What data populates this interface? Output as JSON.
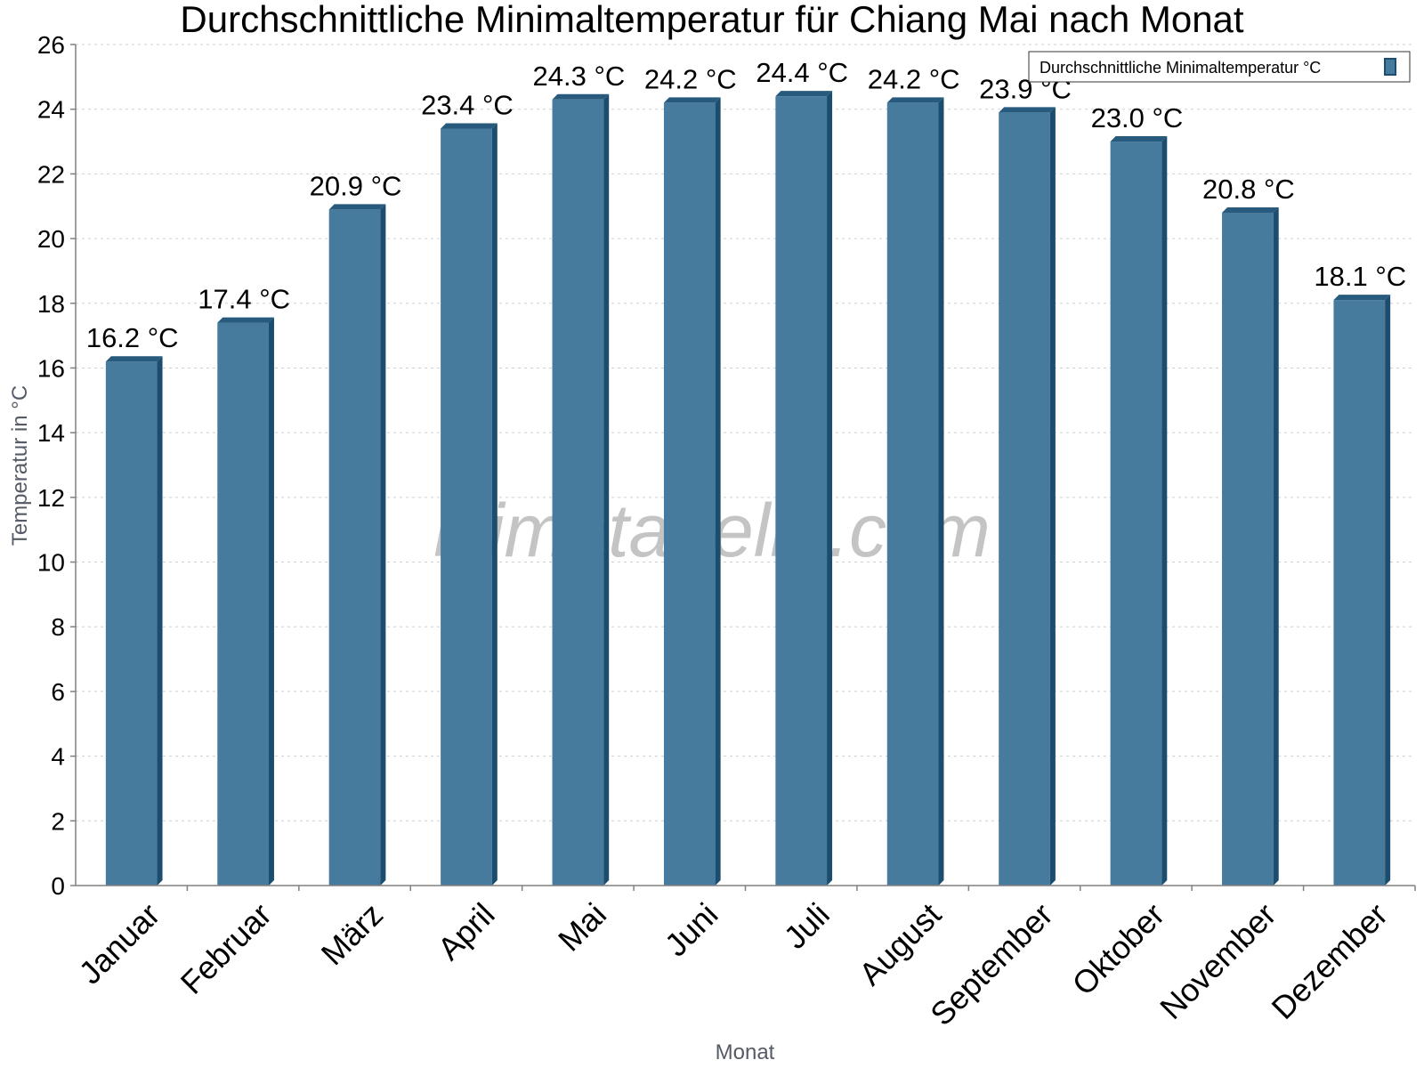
{
  "chart_data": {
    "type": "bar",
    "title": "Durchschnittliche Minimaltemperatur für Chiang Mai nach Monat",
    "xlabel": "Monat",
    "ylabel": "Temperatur in °C",
    "categories": [
      "Januar",
      "Februar",
      "März",
      "April",
      "Mai",
      "Juni",
      "Juli",
      "August",
      "September",
      "Oktober",
      "November",
      "Dezember"
    ],
    "series": [
      {
        "name": "Durchschnittliche Minimaltemperatur °C",
        "values": [
          16.2,
          17.4,
          20.9,
          23.4,
          24.3,
          24.2,
          24.4,
          24.2,
          23.9,
          23.0,
          20.8,
          18.1
        ],
        "labels": [
          "16.2 °C",
          "17.4 °C",
          "20.9 °C",
          "23.4 °C",
          "24.3 °C",
          "24.2 °C",
          "24.4 °C",
          "24.2 °C",
          "23.9 °C",
          "23.0 °C",
          "20.8 °C",
          "18.1 °C"
        ]
      }
    ],
    "ylim": [
      0,
      26
    ],
    "yticks": [
      "0",
      "2",
      "4",
      "6",
      "8",
      "10",
      "12",
      "14",
      "16",
      "18",
      "20",
      "22",
      "24",
      "26"
    ],
    "grid": true,
    "legend_position": "top-right",
    "watermark": "klimatabelle.com",
    "colors": {
      "bar_face": "#467b9e",
      "bar_side": "#1d4d6e",
      "bar_top": "#275a7c"
    }
  }
}
